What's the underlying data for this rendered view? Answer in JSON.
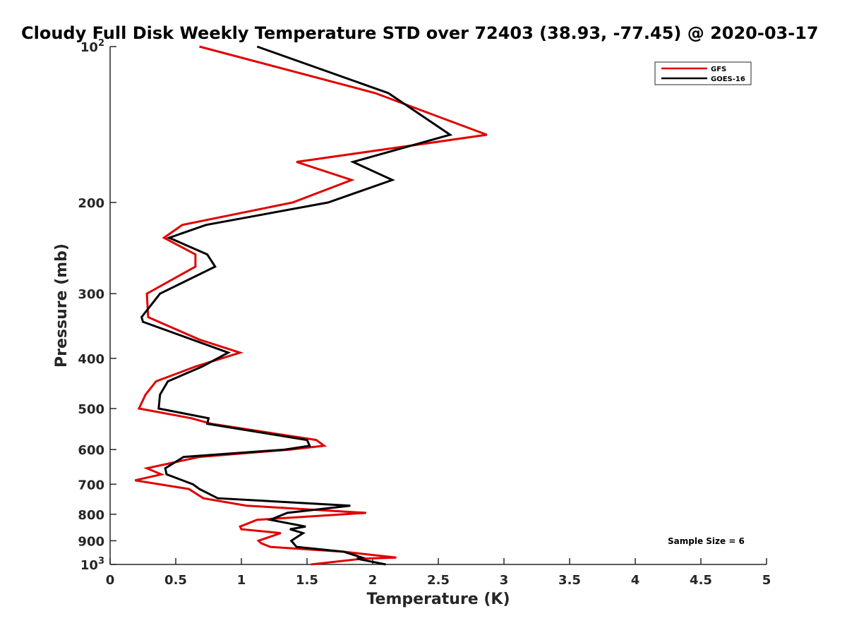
{
  "chart_data": {
    "type": "line",
    "title": "Cloudy Full Disk Weekly Temperature STD over 72403 (38.93, -77.45) @ 2020-03-17",
    "xlabel": "Temperature (K)",
    "ylabel": "Pressure (mb)",
    "xlim": [
      0,
      5
    ],
    "ylim": [
      100,
      1000
    ],
    "y_scale": "log",
    "y_reversed": true,
    "x_ticks": [
      {
        "value": 0,
        "label": "0"
      },
      {
        "value": 0.5,
        "label": "0.5"
      },
      {
        "value": 1,
        "label": "1"
      },
      {
        "value": 1.5,
        "label": "1.5"
      },
      {
        "value": 2,
        "label": "2"
      },
      {
        "value": 2.5,
        "label": "2.5"
      },
      {
        "value": 3,
        "label": "3"
      },
      {
        "value": 3.5,
        "label": "3.5"
      },
      {
        "value": 4,
        "label": "4"
      },
      {
        "value": 4.5,
        "label": "4.5"
      },
      {
        "value": 5,
        "label": "5"
      }
    ],
    "y_ticks": [
      {
        "value": 100,
        "label": "10",
        "sup": "2"
      },
      {
        "value": 200,
        "label": "200",
        "sup": ""
      },
      {
        "value": 300,
        "label": "300",
        "sup": ""
      },
      {
        "value": 400,
        "label": "400",
        "sup": ""
      },
      {
        "value": 500,
        "label": "500",
        "sup": ""
      },
      {
        "value": 600,
        "label": "600",
        "sup": ""
      },
      {
        "value": 700,
        "label": "700",
        "sup": ""
      },
      {
        "value": 800,
        "label": "800",
        "sup": ""
      },
      {
        "value": 900,
        "label": "900",
        "sup": ""
      },
      {
        "value": 1000,
        "label": "10",
        "sup": "3"
      }
    ],
    "grid": false,
    "legend_position": "top-right",
    "annotation": "Sample Size = 6",
    "series": [
      {
        "name": "GFS",
        "color": "#e00000",
        "points": [
          [
            0.68,
            100
          ],
          [
            2.02,
            123
          ],
          [
            2.87,
            148
          ],
          [
            1.42,
            167
          ],
          [
            1.84,
            181
          ],
          [
            1.39,
            200
          ],
          [
            0.55,
            221
          ],
          [
            0.41,
            234
          ],
          [
            0.65,
            252
          ],
          [
            0.65,
            266
          ],
          [
            0.28,
            300
          ],
          [
            0.29,
            333
          ],
          [
            0.68,
            368
          ],
          [
            0.99,
            390
          ],
          [
            0.65,
            415
          ],
          [
            0.35,
            443
          ],
          [
            0.27,
            470
          ],
          [
            0.22,
            500
          ],
          [
            0.62,
            522
          ],
          [
            0.77,
            535
          ],
          [
            1.57,
            575
          ],
          [
            1.63,
            590
          ],
          [
            1.37,
            600
          ],
          [
            0.68,
            620
          ],
          [
            0.28,
            652
          ],
          [
            0.39,
            670
          ],
          [
            0.19,
            688
          ],
          [
            0.6,
            715
          ],
          [
            0.71,
            745
          ],
          [
            1.04,
            770
          ],
          [
            1.95,
            795
          ],
          [
            1.12,
            820
          ],
          [
            0.99,
            845
          ],
          [
            1.0,
            855
          ],
          [
            1.3,
            870
          ],
          [
            1.13,
            900
          ],
          [
            1.15,
            910
          ],
          [
            1.22,
            925
          ],
          [
            1.78,
            945
          ],
          [
            2.18,
            970
          ],
          [
            1.92,
            975
          ],
          [
            1.53,
            1000
          ]
        ]
      },
      {
        "name": "GOES-16",
        "color": "#000000",
        "points": [
          [
            1.12,
            100
          ],
          [
            2.12,
            123
          ],
          [
            2.59,
            148
          ],
          [
            1.85,
            167
          ],
          [
            2.15,
            181
          ],
          [
            1.66,
            200
          ],
          [
            0.73,
            221
          ],
          [
            0.45,
            234
          ],
          [
            0.74,
            252
          ],
          [
            0.8,
            266
          ],
          [
            0.38,
            300
          ],
          [
            0.24,
            333
          ],
          [
            0.25,
            340
          ],
          [
            0.9,
            390
          ],
          [
            0.7,
            415
          ],
          [
            0.44,
            443
          ],
          [
            0.38,
            470
          ],
          [
            0.37,
            500
          ],
          [
            0.75,
            522
          ],
          [
            0.74,
            535
          ],
          [
            1.5,
            575
          ],
          [
            1.52,
            590
          ],
          [
            1.33,
            600
          ],
          [
            0.56,
            620
          ],
          [
            0.42,
            652
          ],
          [
            0.43,
            670
          ],
          [
            0.63,
            700
          ],
          [
            0.68,
            715
          ],
          [
            0.82,
            745
          ],
          [
            1.83,
            770
          ],
          [
            1.35,
            795
          ],
          [
            1.22,
            820
          ],
          [
            1.49,
            845
          ],
          [
            1.37,
            855
          ],
          [
            1.47,
            870
          ],
          [
            1.38,
            900
          ],
          [
            1.42,
            925
          ],
          [
            1.78,
            945
          ],
          [
            1.92,
            970
          ],
          [
            1.88,
            975
          ],
          [
            2.1,
            1000
          ]
        ]
      }
    ]
  }
}
